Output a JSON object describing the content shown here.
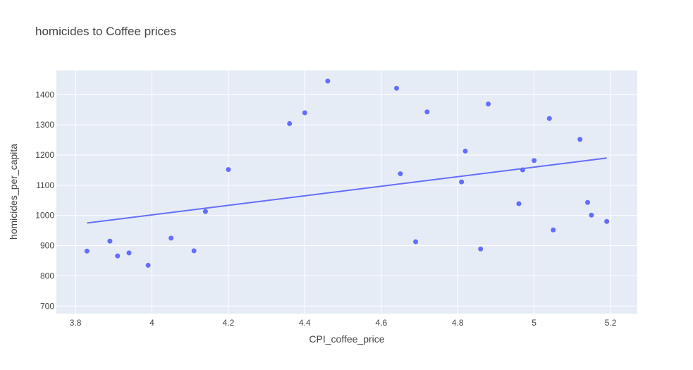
{
  "chart_data": {
    "type": "scatter",
    "title": "homicides to Coffee prices",
    "xlabel": "CPI_coffee_price",
    "ylabel": "homicides_per_capita",
    "xlim": [
      3.75,
      5.27
    ],
    "ylim": [
      675,
      1480
    ],
    "x_ticks": [
      3.8,
      4,
      4.2,
      4.4,
      4.6,
      4.8,
      5,
      5.2
    ],
    "x_tick_labels": [
      "3.8",
      "4",
      "4.2",
      "4.4",
      "4.6",
      "4.8",
      "5",
      "5.2"
    ],
    "y_ticks": [
      700,
      800,
      900,
      1000,
      1100,
      1200,
      1300,
      1400
    ],
    "y_tick_labels": [
      "700",
      "800",
      "900",
      "1000",
      "1100",
      "1200",
      "1300",
      "1400"
    ],
    "grid": true,
    "colors": {
      "marker": "#636efa",
      "plot_bg": "#e5ecf6",
      "grid": "#ffffff"
    },
    "series": [
      {
        "mode": "markers",
        "x": [
          3.83,
          3.89,
          3.91,
          3.94,
          3.99,
          4.05,
          4.11,
          4.14,
          4.2,
          4.36,
          4.4,
          4.46,
          4.64,
          4.65,
          4.69,
          4.72,
          4.81,
          4.82,
          4.86,
          4.88,
          4.96,
          4.97,
          5.0,
          5.04,
          5.05,
          5.12,
          5.14,
          5.15,
          5.19
        ],
        "y": [
          882,
          915,
          866,
          876,
          835,
          925,
          883,
          1013,
          1152,
          1304,
          1340,
          1445,
          1421,
          1138,
          913,
          1343,
          1111,
          1213,
          889,
          1369,
          1039,
          1151,
          1182,
          1321,
          952,
          1252,
          1043,
          1001,
          980
        ]
      },
      {
        "mode": "lines",
        "x": [
          3.83,
          5.19
        ],
        "y": [
          975,
          1190
        ]
      }
    ]
  }
}
